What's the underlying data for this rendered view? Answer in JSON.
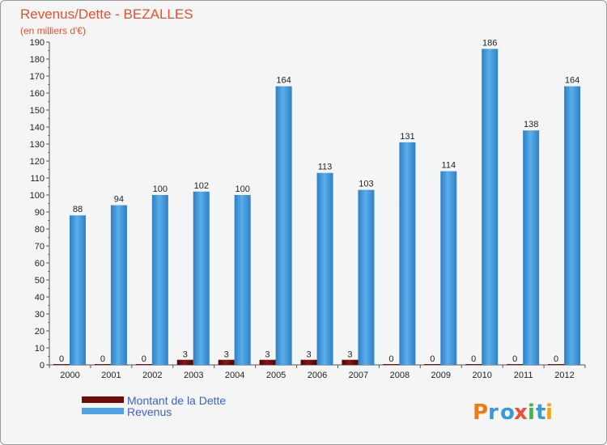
{
  "chart_data": {
    "type": "bar",
    "title": "Revenus/Dette - BEZALLES",
    "subtitle": "(en milliers d'€)",
    "categories": [
      "2000",
      "2001",
      "2002",
      "2003",
      "2004",
      "2005",
      "2006",
      "2007",
      "2008",
      "2009",
      "2010",
      "2011",
      "2012"
    ],
    "series": [
      {
        "name": "Montant de la Dette",
        "color": "#6e0b0b",
        "values": [
          0,
          0,
          0,
          3,
          3,
          3,
          3,
          3,
          0,
          0,
          0,
          0,
          0
        ]
      },
      {
        "name": "Revenus",
        "color": "#4ea3e5",
        "values": [
          88,
          94,
          100,
          102,
          100,
          164,
          113,
          103,
          131,
          114,
          186,
          138,
          164
        ]
      }
    ],
    "ylim": [
      0,
      190
    ],
    "yticks": [
      0,
      10,
      20,
      30,
      40,
      50,
      60,
      70,
      80,
      90,
      100,
      110,
      120,
      130,
      140,
      150,
      160,
      170,
      180,
      190
    ],
    "xlabel": "",
    "ylabel": "",
    "grid": false,
    "legend": "bottom-left"
  },
  "brand": {
    "logo_text": "Proxiti"
  }
}
